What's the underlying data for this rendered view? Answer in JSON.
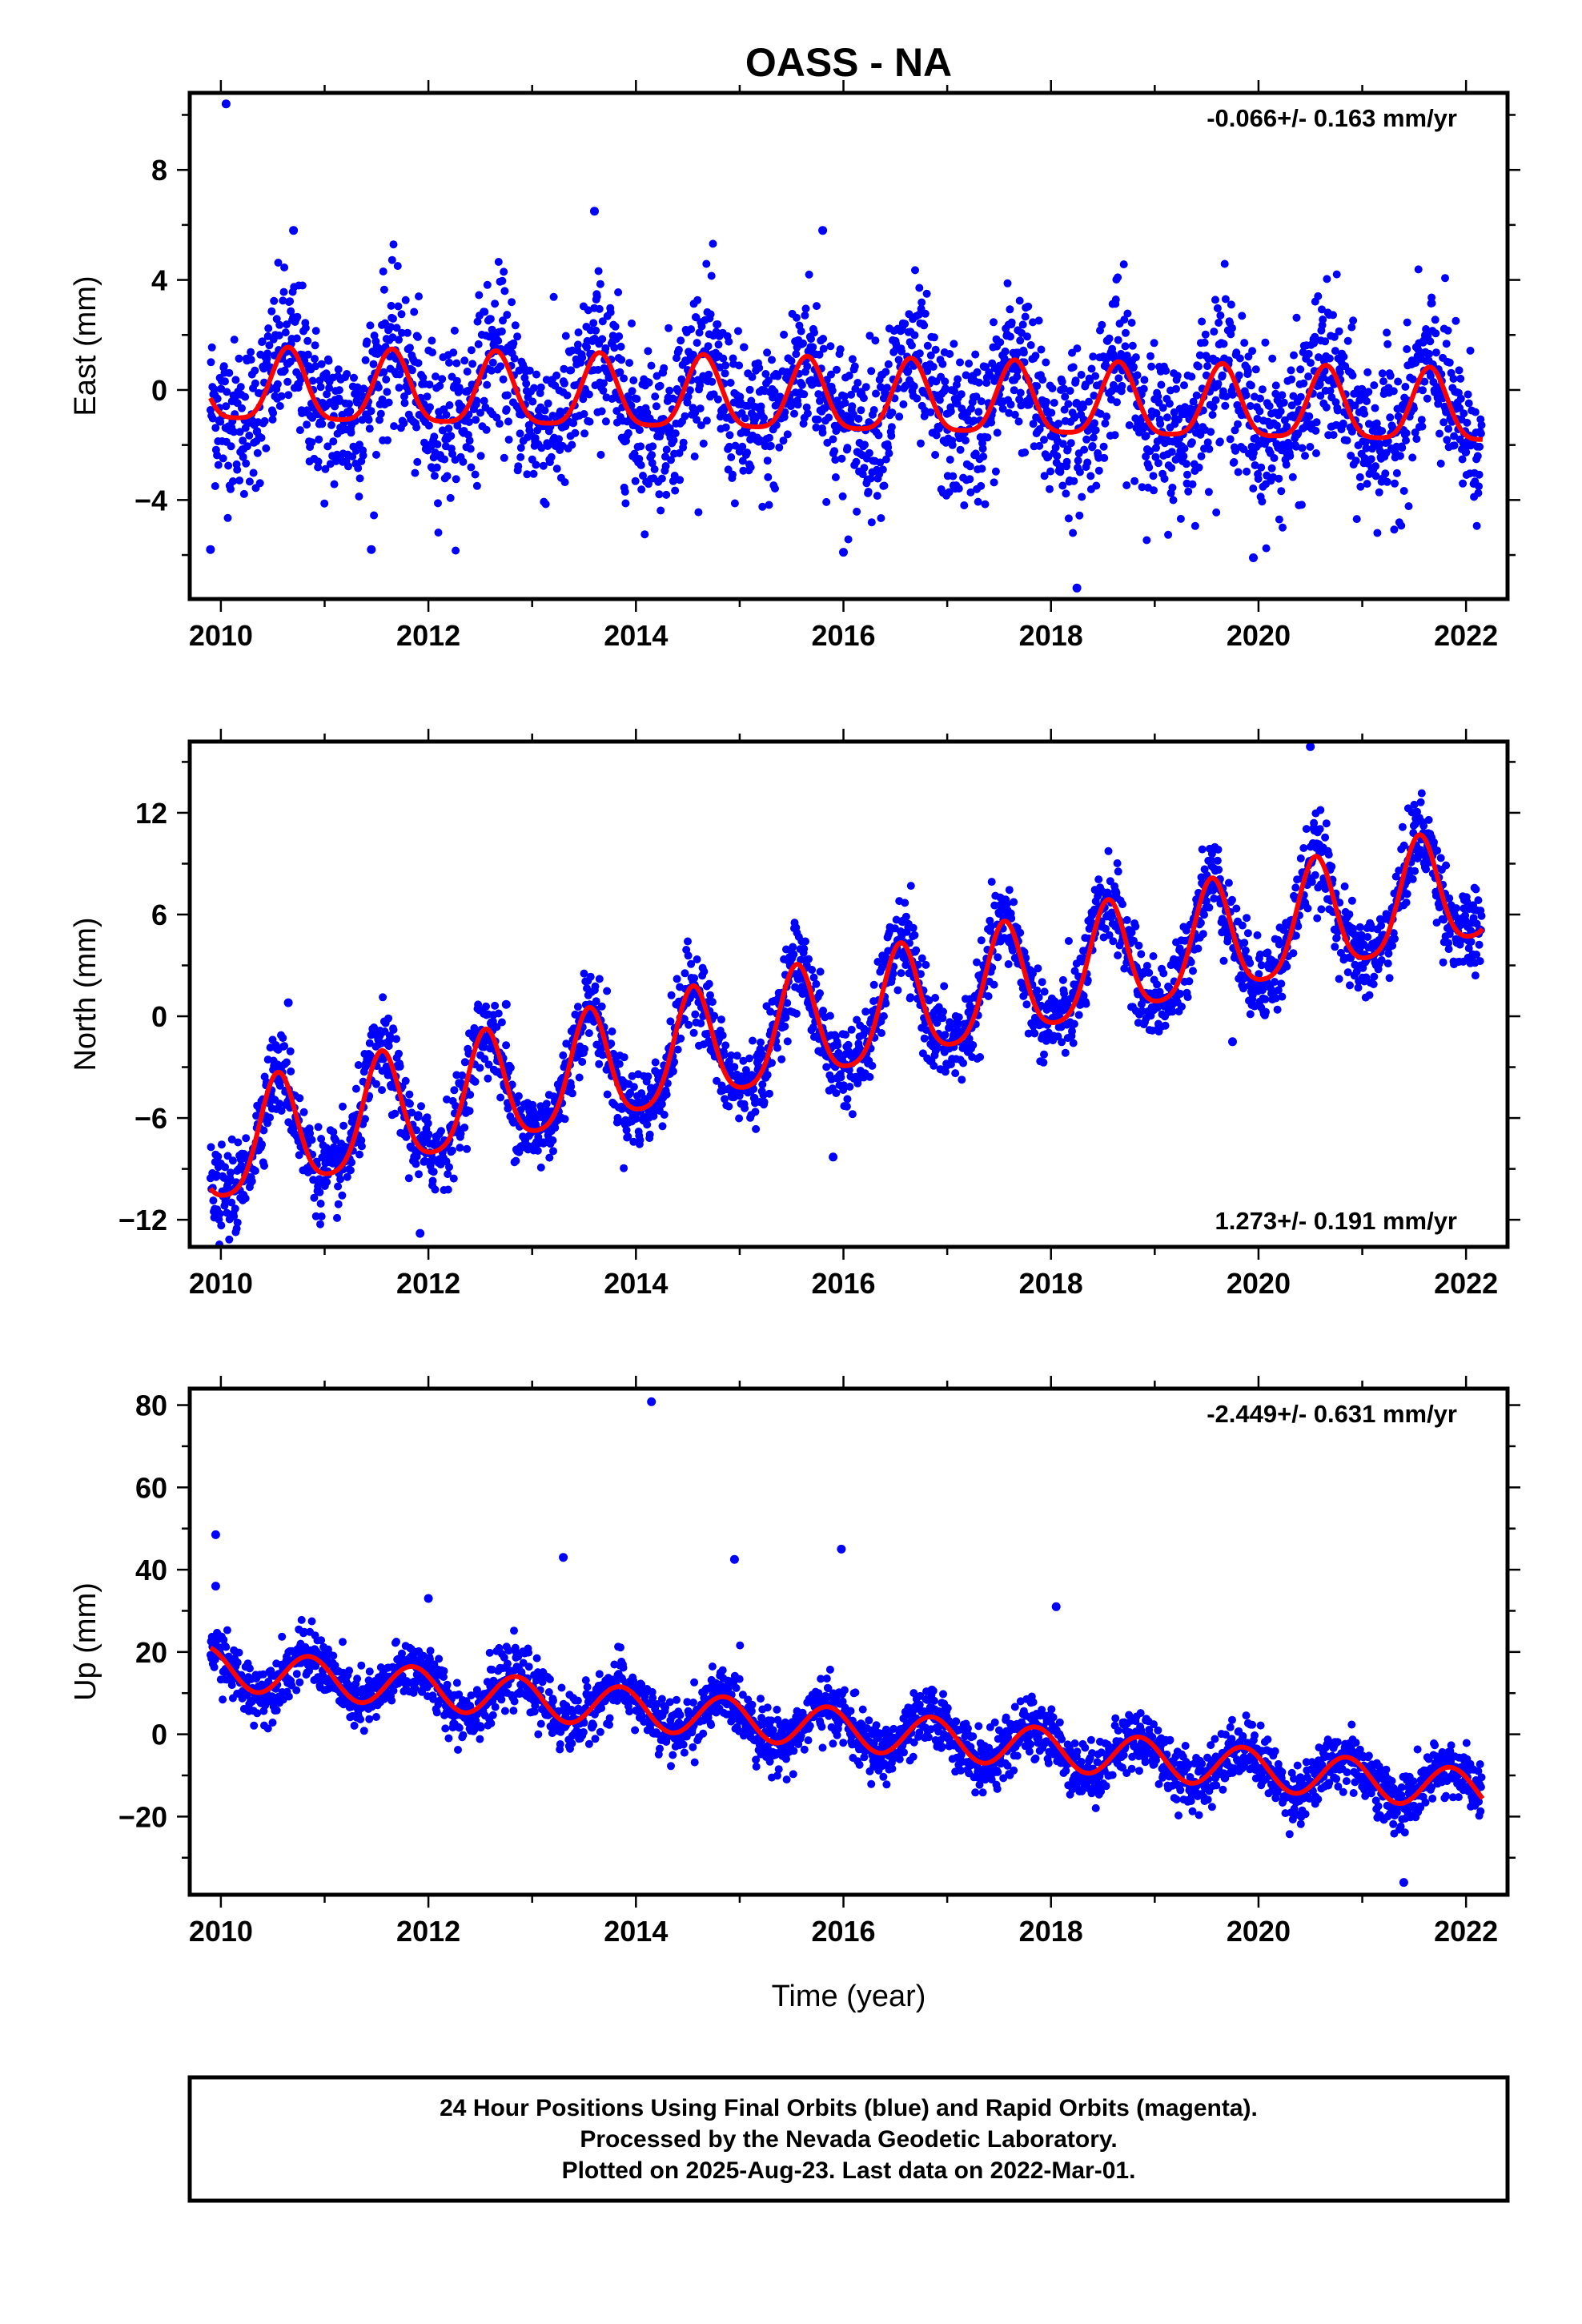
{
  "title": "OASS - NA",
  "colors": {
    "points": "#0000ff",
    "fit": "#ff0000",
    "axis": "#000000"
  },
  "x_axis_title": "Time (year)",
  "footer": {
    "line1": "24 Hour Positions Using Final Orbits (blue) and Rapid Orbits (magenta).",
    "line2": "Processed by the Nevada Geodetic Laboratory.",
    "line3": "Plotted on 2025-Aug-23. Last data on 2022-Mar-01."
  },
  "chart_data": [
    {
      "type": "scatter",
      "component": "East",
      "ylabel": "East (mm)",
      "rate_label": "-0.066+/- 0.163 mm/yr",
      "rate_position": "top-right",
      "xlim": [
        2009.7,
        2022.4
      ],
      "ylim": [
        -7.6,
        10.8
      ],
      "x_ticks": [
        2010,
        2012,
        2014,
        2016,
        2018,
        2020,
        2022
      ],
      "y_ticks": [
        -4,
        0,
        4,
        8
      ],
      "fit": {
        "offset": 0.0,
        "rate": -0.066,
        "annual_amplitude": 1.3,
        "annual_phase_peak": 0.65,
        "semiannual_amplitude": 0.3
      },
      "scatter_spread": 1.4,
      "outliers": [
        {
          "x": 2010.05,
          "y": 10.4
        },
        {
          "x": 2010.7,
          "y": 5.8
        },
        {
          "x": 2013.6,
          "y": 6.5
        },
        {
          "x": 2015.8,
          "y": 5.8
        },
        {
          "x": 2009.9,
          "y": -5.8
        },
        {
          "x": 2011.45,
          "y": -5.8
        },
        {
          "x": 2018.25,
          "y": -7.2
        },
        {
          "x": 2019.95,
          "y": -6.1
        },
        {
          "x": 2016.0,
          "y": -5.9
        }
      ],
      "grid": false
    },
    {
      "type": "scatter",
      "component": "North",
      "ylabel": "North (mm)",
      "rate_label": "1.273+/- 0.191 mm/yr",
      "rate_position": "bottom-right",
      "xlim": [
        2009.7,
        2022.4
      ],
      "ylim": [
        -13.6,
        16.2
      ],
      "x_ticks": [
        2010,
        2012,
        2014,
        2016,
        2018,
        2020,
        2022
      ],
      "y_ticks": [
        -12,
        -6,
        0,
        6,
        12
      ],
      "fit": {
        "offset": -7.9,
        "rate": 1.273,
        "annual_amplitude": 3.3,
        "annual_phase_peak": 0.55,
        "semiannual_amplitude": 0.6
      },
      "scatter_spread": 1.2,
      "outliers": [
        {
          "x": 2020.5,
          "y": 15.9
        },
        {
          "x": 2010.65,
          "y": 0.8
        },
        {
          "x": 2011.92,
          "y": -12.8
        },
        {
          "x": 2015.9,
          "y": -8.3
        },
        {
          "x": 2019.75,
          "y": -1.5
        },
        {
          "x": 2012.75,
          "y": 0.7
        }
      ],
      "grid": false
    },
    {
      "type": "scatter",
      "component": "Up",
      "ylabel": "Up (mm)",
      "rate_label": "-2.449+/- 0.631 mm/yr",
      "rate_position": "top-right",
      "xlim": [
        2009.7,
        2022.4
      ],
      "ylim": [
        -39,
        84
      ],
      "x_ticks": [
        2010,
        2012,
        2014,
        2016,
        2018,
        2020,
        2022
      ],
      "y_ticks": [
        -20,
        0,
        20,
        40,
        60,
        80
      ],
      "fit": {
        "offset": 16.0,
        "rate": -2.449,
        "annual_amplitude": 5.0,
        "annual_phase_peak": 0.85,
        "semiannual_amplitude": 0.0
      },
      "scatter_spread": 3.5,
      "outliers": [
        {
          "x": 2014.15,
          "y": 80.8
        },
        {
          "x": 2009.95,
          "y": 48.5
        },
        {
          "x": 2015.98,
          "y": 45.0
        },
        {
          "x": 2013.3,
          "y": 43.0
        },
        {
          "x": 2014.95,
          "y": 42.5
        },
        {
          "x": 2009.95,
          "y": 36.0
        },
        {
          "x": 2018.05,
          "y": 31.0
        },
        {
          "x": 2012.0,
          "y": 33.0
        },
        {
          "x": 2021.4,
          "y": -36.0
        }
      ],
      "grid": false
    }
  ]
}
